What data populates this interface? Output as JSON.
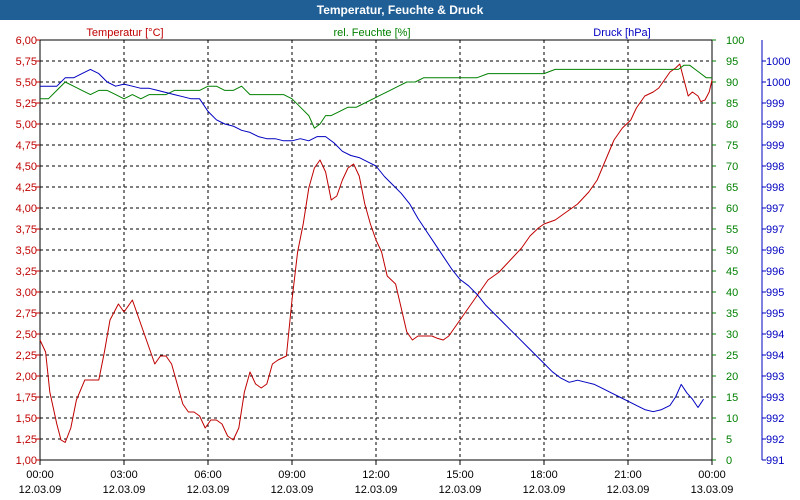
{
  "chart_data": {
    "type": "line",
    "title": "Temperatur, Feuchte & Druck",
    "x_ticks": [
      {
        "time": "00:00",
        "date": "12.03.09"
      },
      {
        "time": "03:00",
        "date": "12.03.09"
      },
      {
        "time": "06:00",
        "date": "12.03.09"
      },
      {
        "time": "09:00",
        "date": "12.03.09"
      },
      {
        "time": "12:00",
        "date": "12.03.09"
      },
      {
        "time": "15:00",
        "date": "12.03.09"
      },
      {
        "time": "18:00",
        "date": "12.03.09"
      },
      {
        "time": "21:00",
        "date": "12.03.09"
      },
      {
        "time": "00:00",
        "date": "13.03.09"
      }
    ],
    "x_range_hours": [
      0,
      24
    ],
    "axes": {
      "temperature": {
        "label": "Temperatur [°C]",
        "color": "#c00000",
        "range": [
          1.0,
          6.25
        ],
        "ticks": [
          "1,00",
          "1,25",
          "1,50",
          "1,75",
          "2,00",
          "2,25",
          "2,50",
          "2,75",
          "3,00",
          "3,25",
          "3,50",
          "3,75",
          "4,00",
          "4,25",
          "4,50",
          "4,75",
          "5,00",
          "5,25",
          "5,50",
          "5,75",
          "6,00"
        ]
      },
      "humidity": {
        "label": "rel. Feuchte [%]",
        "color": "#008000",
        "range": [
          0,
          100
        ],
        "ticks": [
          "0",
          "5",
          "10",
          "15",
          "20",
          "25",
          "30",
          "35",
          "40",
          "45",
          "50",
          "55",
          "60",
          "65",
          "70",
          "75",
          "80",
          "85",
          "90",
          "95",
          "100"
        ]
      },
      "pressure": {
        "label": "Druck [hPa]",
        "color": "#0000c0",
        "range": [
          991,
          1001
        ],
        "ticks": [
          "991",
          "992",
          "992",
          "993",
          "993",
          "994",
          "994",
          "995",
          "995",
          "996",
          "996",
          "997",
          "997",
          "998",
          "998",
          "999",
          "999",
          "999",
          "1000",
          "1000"
        ]
      }
    },
    "series": [
      {
        "name": "Temperatur",
        "axis": "temperature",
        "color": "#c00000",
        "points": [
          [
            0,
            2.5
          ],
          [
            0.2,
            2.35
          ],
          [
            0.35,
            1.85
          ],
          [
            0.6,
            1.45
          ],
          [
            0.75,
            1.25
          ],
          [
            0.9,
            1.22
          ],
          [
            1.1,
            1.4
          ],
          [
            1.3,
            1.75
          ],
          [
            1.6,
            2.0
          ],
          [
            1.9,
            2.0
          ],
          [
            2.1,
            2.0
          ],
          [
            2.3,
            2.35
          ],
          [
            2.5,
            2.75
          ],
          [
            2.8,
            2.95
          ],
          [
            3.0,
            2.85
          ],
          [
            3.2,
            2.95
          ],
          [
            3.3,
            3.0
          ],
          [
            3.5,
            2.8
          ],
          [
            3.7,
            2.6
          ],
          [
            3.9,
            2.4
          ],
          [
            4.1,
            2.2
          ],
          [
            4.3,
            2.3
          ],
          [
            4.5,
            2.3
          ],
          [
            4.7,
            2.2
          ],
          [
            4.9,
            1.95
          ],
          [
            5.1,
            1.7
          ],
          [
            5.3,
            1.6
          ],
          [
            5.5,
            1.6
          ],
          [
            5.7,
            1.55
          ],
          [
            5.9,
            1.4
          ],
          [
            6.1,
            1.5
          ],
          [
            6.3,
            1.5
          ],
          [
            6.5,
            1.45
          ],
          [
            6.7,
            1.3
          ],
          [
            6.9,
            1.25
          ],
          [
            7.1,
            1.4
          ],
          [
            7.3,
            1.85
          ],
          [
            7.5,
            2.1
          ],
          [
            7.7,
            1.95
          ],
          [
            7.9,
            1.9
          ],
          [
            8.1,
            1.95
          ],
          [
            8.3,
            2.2
          ],
          [
            8.5,
            2.25
          ],
          [
            8.8,
            2.3
          ],
          [
            9.0,
            3.0
          ],
          [
            9.2,
            3.6
          ],
          [
            9.4,
            3.95
          ],
          [
            9.6,
            4.4
          ],
          [
            9.8,
            4.65
          ],
          [
            10.0,
            4.75
          ],
          [
            10.2,
            4.6
          ],
          [
            10.4,
            4.25
          ],
          [
            10.6,
            4.3
          ],
          [
            10.8,
            4.5
          ],
          [
            11.0,
            4.65
          ],
          [
            11.2,
            4.7
          ],
          [
            11.4,
            4.55
          ],
          [
            11.6,
            4.2
          ],
          [
            11.8,
            3.95
          ],
          [
            12.0,
            3.75
          ],
          [
            12.2,
            3.6
          ],
          [
            12.4,
            3.3
          ],
          [
            12.7,
            3.2
          ],
          [
            12.9,
            2.9
          ],
          [
            13.1,
            2.6
          ],
          [
            13.3,
            2.5
          ],
          [
            13.5,
            2.55
          ],
          [
            13.8,
            2.55
          ],
          [
            14.0,
            2.55
          ],
          [
            14.2,
            2.52
          ],
          [
            14.4,
            2.5
          ],
          [
            14.6,
            2.55
          ],
          [
            14.8,
            2.65
          ],
          [
            15.0,
            2.75
          ],
          [
            15.3,
            2.9
          ],
          [
            15.6,
            3.05
          ],
          [
            16.0,
            3.25
          ],
          [
            16.4,
            3.35
          ],
          [
            16.8,
            3.5
          ],
          [
            17.2,
            3.65
          ],
          [
            17.5,
            3.8
          ],
          [
            17.8,
            3.9
          ],
          [
            18.0,
            3.95
          ],
          [
            18.4,
            4.0
          ],
          [
            18.8,
            4.1
          ],
          [
            19.2,
            4.2
          ],
          [
            19.6,
            4.35
          ],
          [
            19.9,
            4.5
          ],
          [
            20.2,
            4.75
          ],
          [
            20.5,
            5.0
          ],
          [
            20.8,
            5.15
          ],
          [
            21.1,
            5.25
          ],
          [
            21.3,
            5.4
          ],
          [
            21.6,
            5.55
          ],
          [
            21.9,
            5.6
          ],
          [
            22.1,
            5.65
          ],
          [
            22.3,
            5.75
          ],
          [
            22.5,
            5.85
          ],
          [
            22.7,
            5.9
          ],
          [
            22.85,
            5.95
          ],
          [
            23.0,
            5.75
          ],
          [
            23.15,
            5.55
          ],
          [
            23.3,
            5.6
          ],
          [
            23.5,
            5.55
          ],
          [
            23.6,
            5.48
          ],
          [
            23.75,
            5.5
          ],
          [
            23.9,
            5.6
          ],
          [
            24.0,
            5.75
          ]
        ]
      },
      {
        "name": "rel. Feuchte",
        "axis": "humidity",
        "color": "#008000",
        "points": [
          [
            0,
            86
          ],
          [
            0.3,
            86
          ],
          [
            0.6,
            88
          ],
          [
            0.9,
            90
          ],
          [
            1.2,
            89
          ],
          [
            1.5,
            88
          ],
          [
            1.8,
            87
          ],
          [
            2.1,
            88
          ],
          [
            2.4,
            88
          ],
          [
            2.7,
            87
          ],
          [
            3.0,
            86
          ],
          [
            3.3,
            87
          ],
          [
            3.6,
            86
          ],
          [
            3.9,
            87
          ],
          [
            4.2,
            87
          ],
          [
            4.5,
            87
          ],
          [
            4.8,
            88
          ],
          [
            5.1,
            88
          ],
          [
            5.4,
            88
          ],
          [
            5.7,
            88
          ],
          [
            6.0,
            89
          ],
          [
            6.3,
            89
          ],
          [
            6.6,
            88
          ],
          [
            6.9,
            88
          ],
          [
            7.2,
            89
          ],
          [
            7.5,
            87
          ],
          [
            7.8,
            87
          ],
          [
            8.1,
            87
          ],
          [
            8.4,
            87
          ],
          [
            8.7,
            87
          ],
          [
            9.0,
            86
          ],
          [
            9.3,
            84
          ],
          [
            9.6,
            82
          ],
          [
            9.8,
            79
          ],
          [
            10.0,
            80
          ],
          [
            10.2,
            82
          ],
          [
            10.4,
            82
          ],
          [
            10.7,
            83
          ],
          [
            11.0,
            84
          ],
          [
            11.3,
            84
          ],
          [
            11.6,
            85
          ],
          [
            11.9,
            86
          ],
          [
            12.2,
            87
          ],
          [
            12.5,
            88
          ],
          [
            12.8,
            89
          ],
          [
            13.1,
            90
          ],
          [
            13.4,
            90
          ],
          [
            13.7,
            91
          ],
          [
            14.0,
            91
          ],
          [
            14.4,
            91
          ],
          [
            14.8,
            91
          ],
          [
            15.2,
            91
          ],
          [
            15.6,
            91
          ],
          [
            16.0,
            92
          ],
          [
            16.4,
            92
          ],
          [
            16.8,
            92
          ],
          [
            17.2,
            92
          ],
          [
            17.6,
            92
          ],
          [
            18.0,
            92
          ],
          [
            18.4,
            93
          ],
          [
            18.8,
            93
          ],
          [
            19.2,
            93
          ],
          [
            19.6,
            93
          ],
          [
            20.0,
            93
          ],
          [
            20.4,
            93
          ],
          [
            20.8,
            93
          ],
          [
            21.2,
            93
          ],
          [
            21.6,
            93
          ],
          [
            22.0,
            93
          ],
          [
            22.4,
            93
          ],
          [
            22.8,
            93
          ],
          [
            23.0,
            94
          ],
          [
            23.2,
            94
          ],
          [
            23.4,
            93
          ],
          [
            23.6,
            92
          ],
          [
            23.8,
            91
          ],
          [
            24.0,
            91
          ]
        ]
      },
      {
        "name": "Druck",
        "axis": "pressure",
        "color": "#0000c0",
        "points": [
          [
            0,
            999.9
          ],
          [
            0.3,
            999.9
          ],
          [
            0.6,
            999.9
          ],
          [
            0.9,
            1000.1
          ],
          [
            1.2,
            1000.1
          ],
          [
            1.5,
            1000.2
          ],
          [
            1.8,
            1000.3
          ],
          [
            2.1,
            1000.2
          ],
          [
            2.4,
            1000.0
          ],
          [
            2.7,
            999.9
          ],
          [
            3.0,
            999.95
          ],
          [
            3.3,
            999.9
          ],
          [
            3.6,
            999.85
          ],
          [
            3.9,
            999.85
          ],
          [
            4.2,
            999.8
          ],
          [
            4.5,
            999.75
          ],
          [
            4.8,
            999.7
          ],
          [
            5.1,
            999.65
          ],
          [
            5.4,
            999.6
          ],
          [
            5.7,
            999.6
          ],
          [
            6.0,
            999.3
          ],
          [
            6.3,
            999.1
          ],
          [
            6.6,
            999.0
          ],
          [
            6.9,
            998.95
          ],
          [
            7.2,
            998.85
          ],
          [
            7.5,
            998.8
          ],
          [
            7.8,
            998.7
          ],
          [
            8.1,
            998.65
          ],
          [
            8.4,
            998.65
          ],
          [
            8.7,
            998.6
          ],
          [
            9.0,
            998.6
          ],
          [
            9.3,
            998.65
          ],
          [
            9.6,
            998.6
          ],
          [
            9.9,
            998.7
          ],
          [
            10.2,
            998.7
          ],
          [
            10.5,
            998.55
          ],
          [
            10.8,
            998.35
          ],
          [
            11.1,
            998.25
          ],
          [
            11.4,
            998.2
          ],
          [
            11.7,
            998.1
          ],
          [
            12.0,
            998.0
          ],
          [
            12.3,
            997.75
          ],
          [
            12.6,
            997.55
          ],
          [
            12.9,
            997.35
          ],
          [
            13.2,
            997.1
          ],
          [
            13.5,
            996.75
          ],
          [
            13.8,
            996.45
          ],
          [
            14.1,
            996.15
          ],
          [
            14.4,
            995.85
          ],
          [
            14.7,
            995.55
          ],
          [
            15.0,
            995.3
          ],
          [
            15.3,
            995.15
          ],
          [
            15.6,
            994.95
          ],
          [
            15.9,
            994.7
          ],
          [
            16.2,
            994.5
          ],
          [
            16.5,
            994.3
          ],
          [
            16.8,
            994.1
          ],
          [
            17.1,
            993.9
          ],
          [
            17.4,
            993.7
          ],
          [
            17.7,
            993.5
          ],
          [
            18.0,
            993.3
          ],
          [
            18.3,
            993.1
          ],
          [
            18.6,
            992.95
          ],
          [
            18.9,
            992.85
          ],
          [
            19.2,
            992.9
          ],
          [
            19.5,
            992.85
          ],
          [
            19.8,
            992.8
          ],
          [
            20.1,
            992.7
          ],
          [
            20.4,
            992.6
          ],
          [
            20.7,
            992.5
          ],
          [
            21.0,
            992.4
          ],
          [
            21.3,
            992.3
          ],
          [
            21.6,
            992.2
          ],
          [
            21.9,
            992.15
          ],
          [
            22.2,
            992.2
          ],
          [
            22.5,
            992.3
          ],
          [
            22.7,
            992.5
          ],
          [
            22.9,
            992.8
          ],
          [
            23.1,
            992.6
          ],
          [
            23.3,
            992.45
          ],
          [
            23.5,
            992.25
          ],
          [
            23.6,
            992.35
          ],
          [
            23.7,
            992.45
          ]
        ]
      }
    ]
  }
}
